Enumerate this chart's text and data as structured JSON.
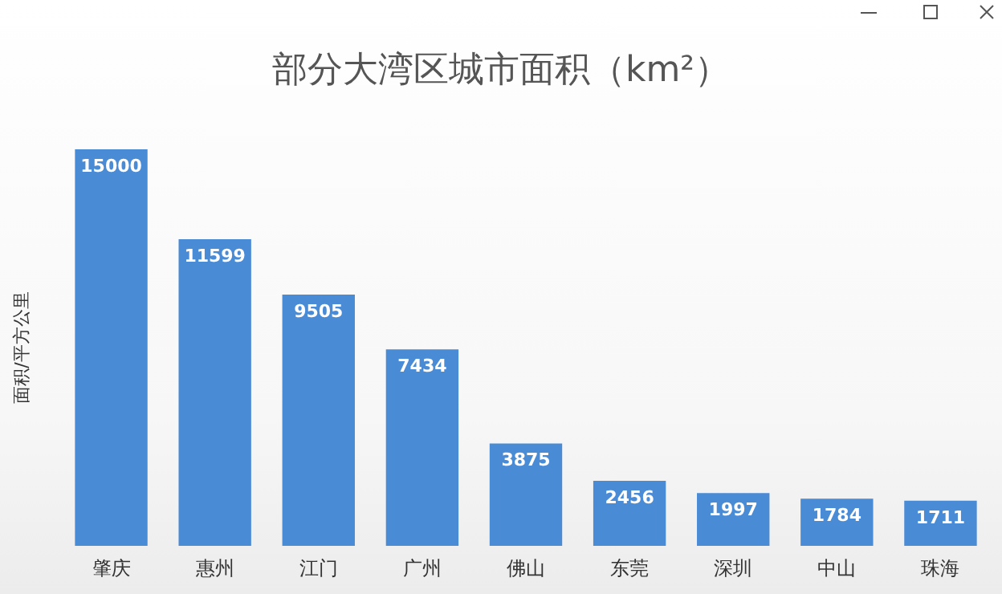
{
  "chart_data": {
    "type": "bar",
    "title": "部分大湾区城市面积（km²）",
    "ylabel": "面积/平方公里",
    "categories": [
      "肇庆",
      "惠州",
      "江门",
      "广州",
      "佛山",
      "东莞",
      "深圳",
      "中山",
      "珠海"
    ],
    "values": [
      15000,
      11599,
      9505,
      7434,
      3875,
      2456,
      1997,
      1784,
      1711
    ],
    "color": "#4a8bd6",
    "data_labels": true
  }
}
